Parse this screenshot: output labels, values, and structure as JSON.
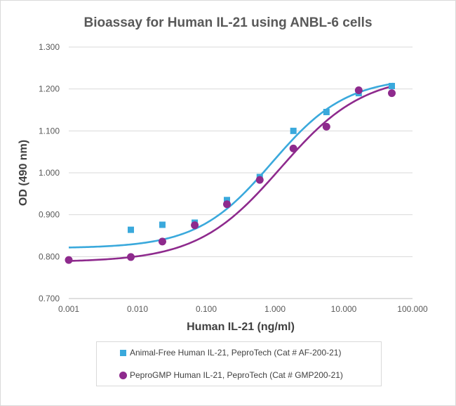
{
  "colors": {
    "series1": "#3aa9dc",
    "series2": "#8e2a8d",
    "grid": "#d9d9d9",
    "text": "#595959"
  },
  "chart_data": {
    "type": "scatter",
    "title": "Bioassay for Human IL-21 using ANBL-6 cells",
    "xlabel": "Human IL-21 (ng/ml)",
    "ylabel": "OD (490 nm)",
    "x_scale": "log",
    "xlim": [
      0.001,
      100
    ],
    "ylim": [
      0.7,
      1.3
    ],
    "x_ticks": [
      0.001,
      0.01,
      0.1,
      1,
      10,
      100
    ],
    "x_tick_labels": [
      "0.001",
      "0.010",
      "0.100",
      "1.000",
      "10.000",
      "100.000"
    ],
    "y_ticks": [
      0.7,
      0.8,
      0.9,
      1.0,
      1.1,
      1.2,
      1.3
    ],
    "y_tick_labels": [
      "0.700",
      "0.800",
      "0.900",
      "1.000",
      "1.100",
      "1.200",
      "1.300"
    ],
    "grid": "horizontal",
    "legend_position": "bottom",
    "series": [
      {
        "name": "Animal-Free Human IL-21, PeproTech (Cat # AF-200-21)",
        "marker": "square",
        "color": "#3aa9dc",
        "x": [
          0.008,
          0.023,
          0.068,
          0.2,
          0.6,
          1.85,
          5.6,
          16.5,
          50
        ],
        "y": [
          0.864,
          0.876,
          0.881,
          0.935,
          0.99,
          1.1,
          1.145,
          1.19,
          1.207
        ],
        "fit_curve": {
          "bottom": 0.82,
          "top": 1.228,
          "ec50": 0.9,
          "hill": 0.8
        }
      },
      {
        "name": "PeproGMP Human IL-21, PeproTech (Cat # GMP200-21)",
        "marker": "circle",
        "color": "#8e2a8d",
        "x": [
          0.001,
          0.008,
          0.023,
          0.068,
          0.2,
          0.6,
          1.85,
          5.6,
          16.5,
          50
        ],
        "y": [
          0.792,
          0.799,
          0.836,
          0.875,
          0.925,
          0.983,
          1.058,
          1.11,
          1.197,
          1.19
        ],
        "fit_curve": {
          "bottom": 0.787,
          "top": 1.235,
          "ec50": 1.2,
          "hill": 0.72
        }
      }
    ]
  }
}
